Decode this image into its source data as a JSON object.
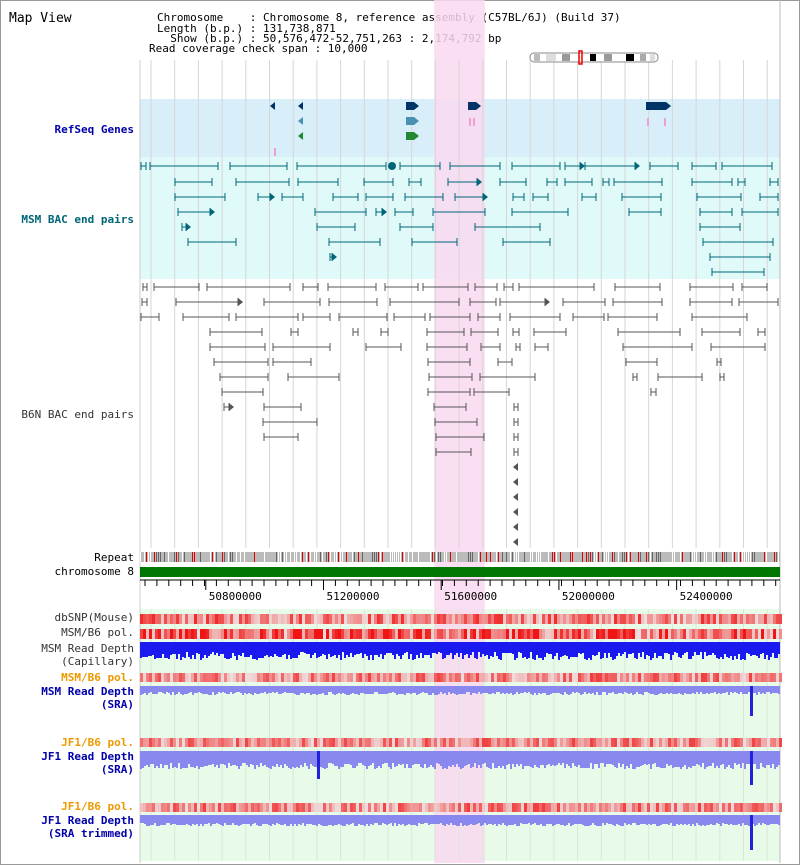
{
  "title": "Map View",
  "info": {
    "line1": "Chromosome    : Chromosome 8, reference assembly (C57BL/6J) (Build 37)",
    "line2": "Length (b.p.) : 131,738,871",
    "line3": "  Show (b.p.) : 50,576,472-52,751,263 : 2,174,792 bp",
    "line4": "Read coverage check span : 10,000"
  },
  "labels": {
    "refseq": "RefSeq Genes",
    "msm_bac": "MSM BAC end pairs",
    "b6n_bac": "B6N BAC end pairs",
    "repeat": "Repeat",
    "chromosome": "chromosome 8",
    "dbsnp": "dbSNP(Mouse)",
    "msm_b6_pol_1": "MSM/B6 pol.",
    "msm_depth_cap_1": "MSM Read Depth",
    "msm_depth_cap_2": "(Capillary)",
    "msm_b6_pol_2": "MSM/B6 pol.",
    "msm_depth_sra_1": "MSM Read Depth",
    "msm_depth_sra_2": "(SRA)",
    "jf1_b6_pol_1": "JF1/B6 pol.",
    "jf1_depth_sra_1": "JF1 Read Depth",
    "jf1_depth_sra_2": "(SRA)",
    "jf1_b6_pol_2": "JF1/B6 pol.",
    "jf1_depth_trim_1": "JF1 Read Depth",
    "jf1_depth_trim_2": "(SRA trimmed)"
  },
  "ruler": {
    "ticks": [
      "50800000",
      "51200000",
      "51600000",
      "52000000",
      "52400000"
    ],
    "tick_values": [
      50800000,
      51200000,
      51600000,
      52000000,
      52400000
    ],
    "range": [
      50576472,
      52751263
    ]
  },
  "highlight_range": [
    51576000,
    51748000
  ],
  "colors": {
    "refseq_bg": "#d8effa",
    "bac_bg": "#e0fafa",
    "depth_bg": "#e8fae8",
    "highlight": "#f9d8f0",
    "chromosome": "#007700",
    "msm_bac": "#006677",
    "b6n_bac": "#555555",
    "depth_cap": "#1a1af0",
    "depth_sra": "#8888ee",
    "refseq_gene": "#003366",
    "label_blue": "#0000aa",
    "label_orange": "#ee9900"
  }
}
